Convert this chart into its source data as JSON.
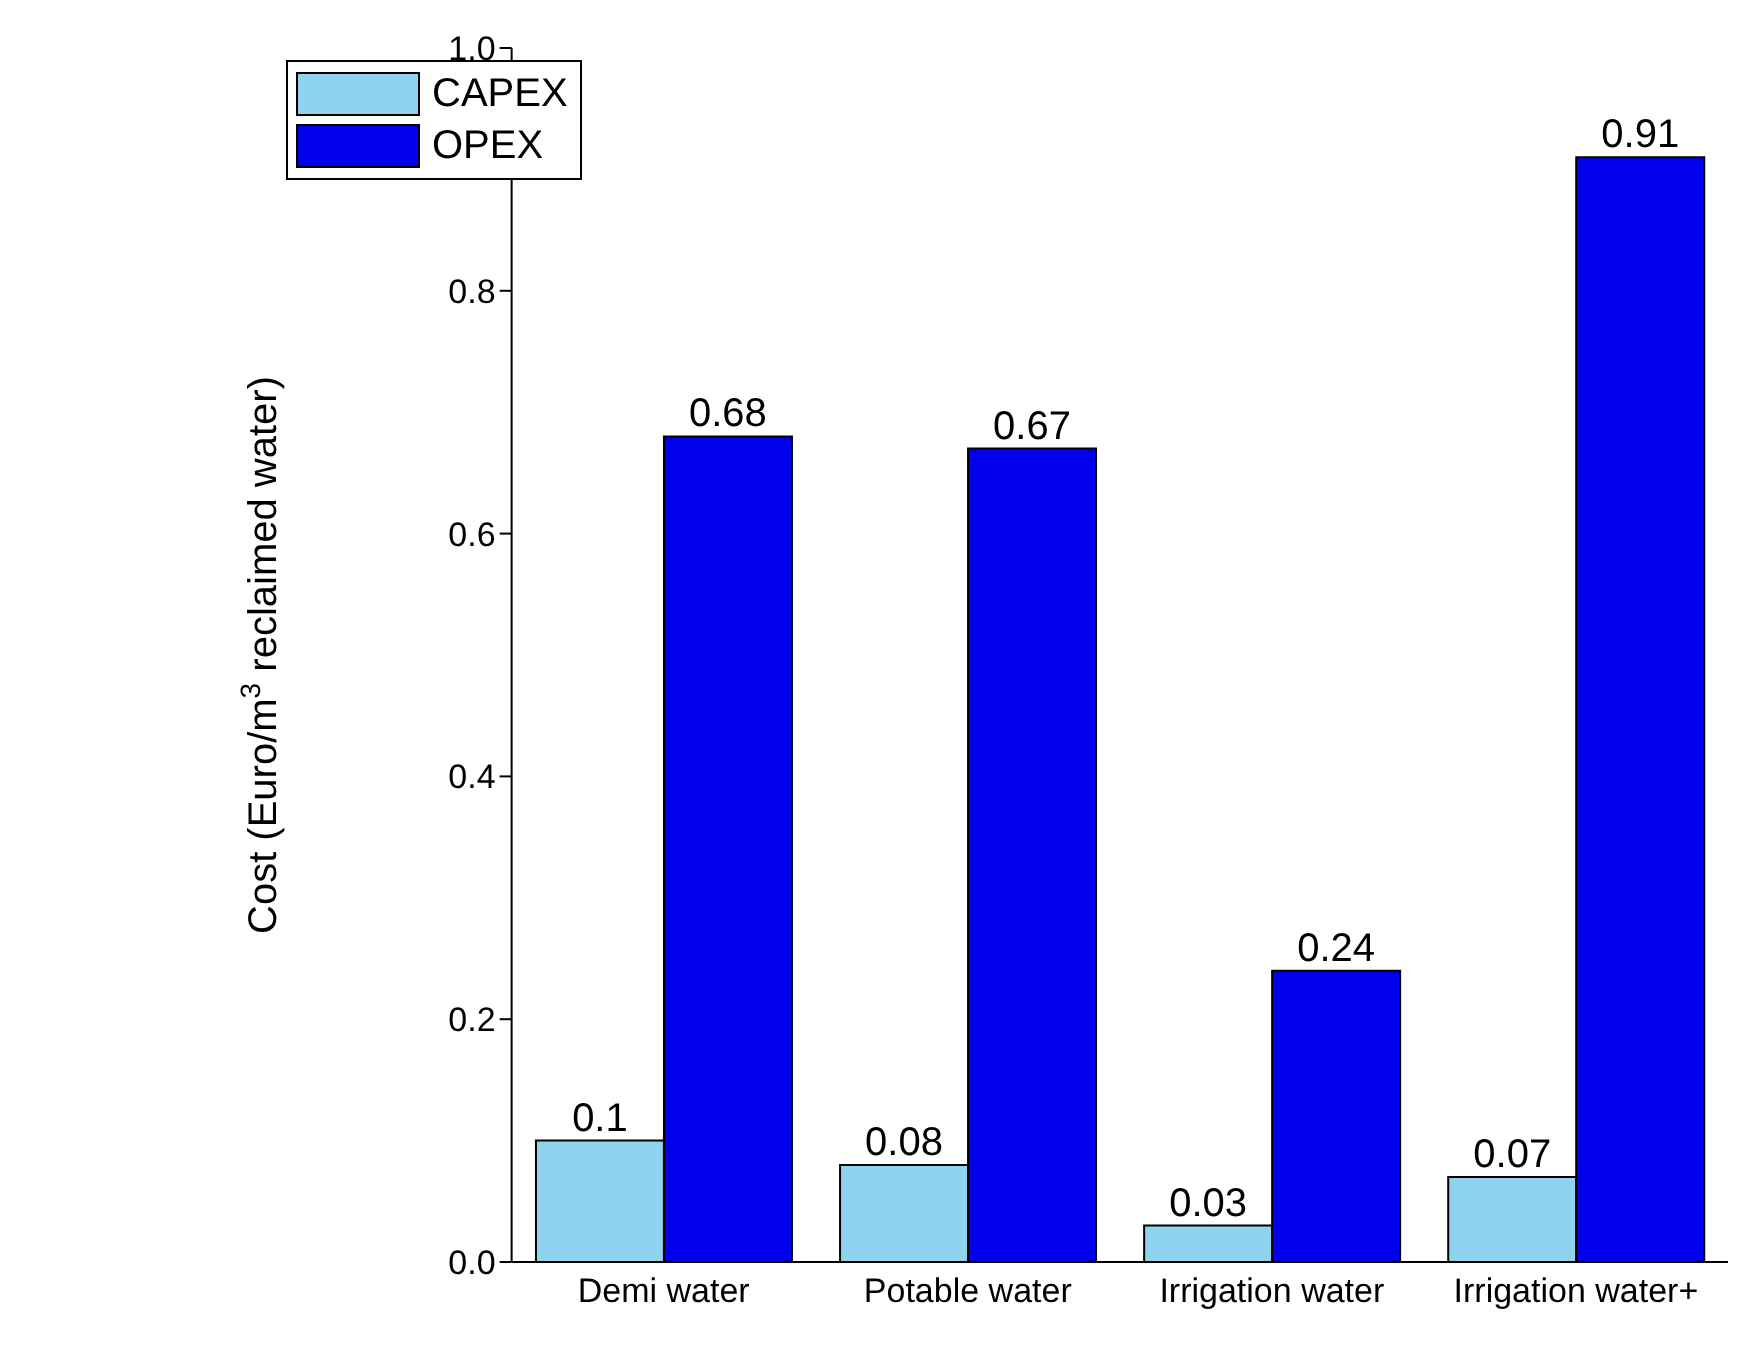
{
  "chart_data": {
    "type": "bar",
    "ylabel": "Cost (Euro/m$^{3}$ reclaimed water)",
    "categories": [
      "Demi water",
      "Potable water",
      "Irrigation water",
      "Irrigation water+"
    ],
    "series": [
      {
        "name": "CAPEX",
        "color": "#8fd3f0",
        "values": [
          0.1,
          0.08,
          0.03,
          0.07
        ]
      },
      {
        "name": "OPEX",
        "color": "#0000ee",
        "values": [
          0.68,
          0.67,
          0.24,
          0.91
        ]
      }
    ],
    "ylim": [
      0,
      1
    ],
    "yticks": [
      {
        "value": 0,
        "label": "0.0"
      },
      {
        "value": 0.2,
        "label": "0.2"
      },
      {
        "value": 0.4,
        "label": "0.4"
      },
      {
        "value": 0.6,
        "label": "0.6"
      },
      {
        "value": 0.8,
        "label": "0.8"
      },
      {
        "value": 1,
        "label": "1.0"
      }
    ],
    "data_labels": true,
    "legend": "top left",
    "grid": false
  }
}
